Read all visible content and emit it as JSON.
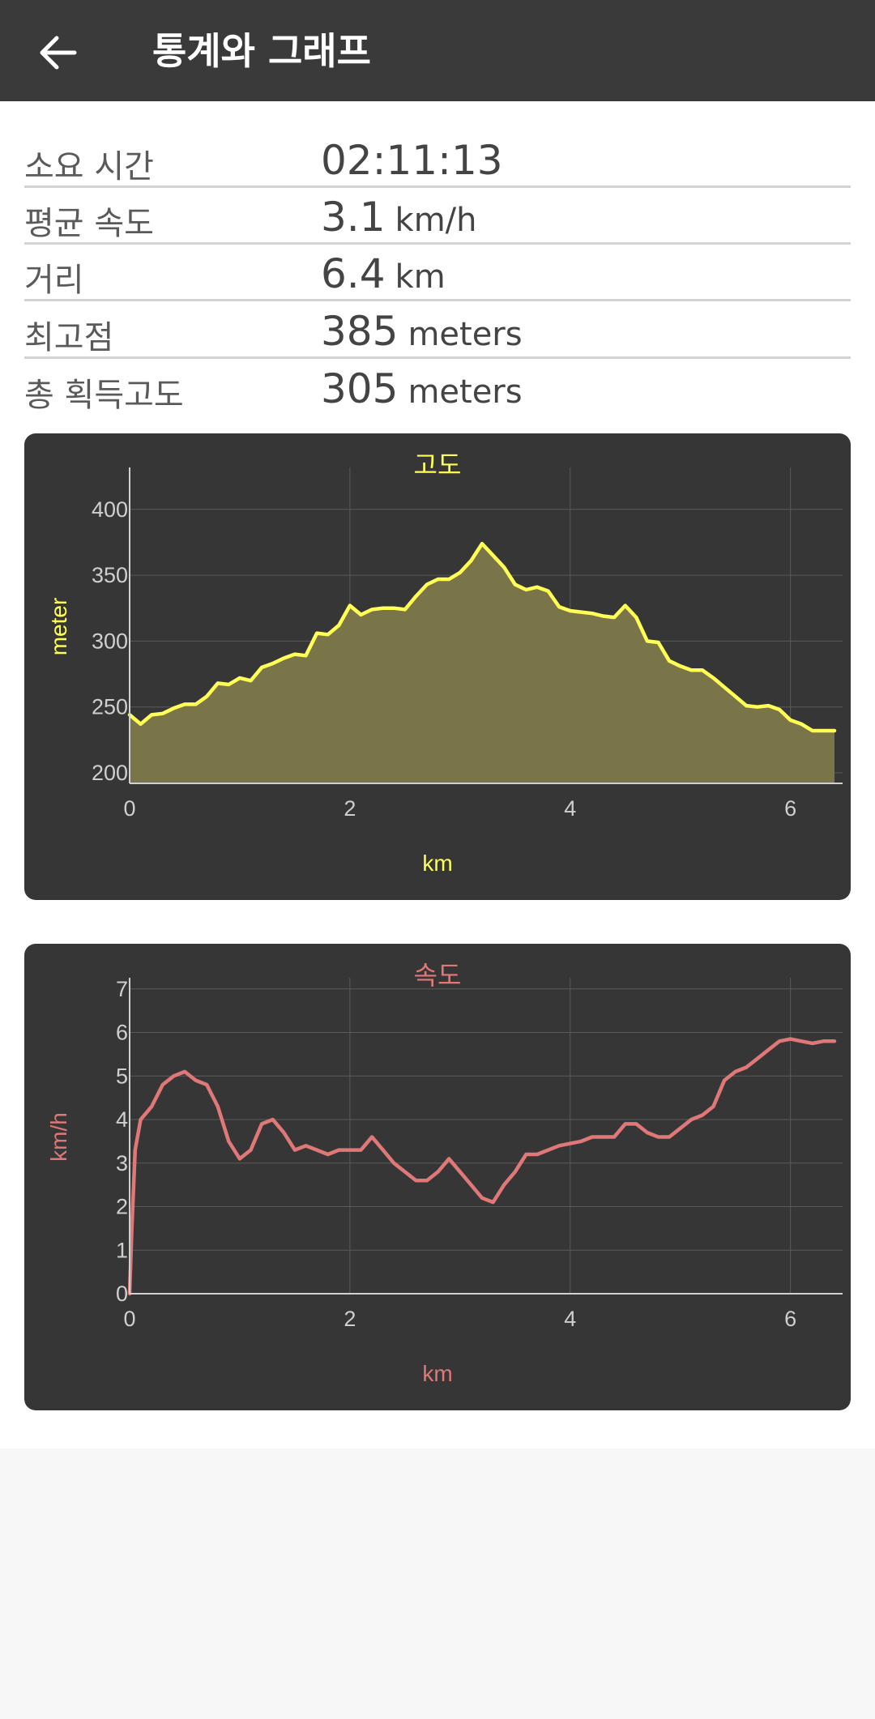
{
  "header": {
    "title": "통계와 그래프"
  },
  "stats": [
    {
      "label": "소요 시간",
      "value": "02:11:13",
      "unit": ""
    },
    {
      "label": "평균 속도",
      "value": "3.1",
      "unit": "km/h"
    },
    {
      "label": "거리",
      "value": "6.4",
      "unit": "km"
    },
    {
      "label": "최고점",
      "value": "385",
      "unit": "meters"
    },
    {
      "label": "총 획득고도",
      "value": "305",
      "unit": "meters"
    }
  ],
  "colors": {
    "appbar": "#3a3a3a",
    "card": "#363636",
    "elevation_line": "#ffff55",
    "elevation_fill": "#7a7548",
    "speed_line": "#e07878"
  },
  "chart_data": [
    {
      "type": "area",
      "title": "고도",
      "xlabel": "km",
      "ylabel": "meter",
      "xlim": [
        0,
        6.4
      ],
      "ylim": [
        192,
        430
      ],
      "xticks": [
        0,
        2,
        4,
        6
      ],
      "yticks": [
        200,
        250,
        300,
        350,
        400
      ],
      "grid": true,
      "x": [
        0,
        0.1,
        0.2,
        0.3,
        0.4,
        0.5,
        0.6,
        0.7,
        0.8,
        0.9,
        1.0,
        1.1,
        1.2,
        1.3,
        1.4,
        1.5,
        1.6,
        1.7,
        1.8,
        1.9,
        2.0,
        2.1,
        2.2,
        2.3,
        2.4,
        2.5,
        2.6,
        2.7,
        2.8,
        2.9,
        3.0,
        3.1,
        3.2,
        3.3,
        3.4,
        3.5,
        3.6,
        3.7,
        3.8,
        3.9,
        4.0,
        4.1,
        4.2,
        4.3,
        4.4,
        4.5,
        4.6,
        4.7,
        4.8,
        4.9,
        5.0,
        5.1,
        5.2,
        5.3,
        5.4,
        5.5,
        5.6,
        5.7,
        5.8,
        5.9,
        6.0,
        6.1,
        6.2,
        6.3,
        6.4
      ],
      "y": [
        244,
        237,
        244,
        245,
        249,
        252,
        252,
        258,
        268,
        267,
        272,
        270,
        280,
        283,
        287,
        290,
        289,
        306,
        305,
        312,
        327,
        320,
        324,
        325,
        325,
        324,
        334,
        343,
        347,
        347,
        352,
        361,
        374,
        365,
        356,
        343,
        339,
        341,
        338,
        326,
        323,
        322,
        321,
        319,
        318,
        327,
        318,
        300,
        299,
        285,
        281,
        278,
        278,
        272,
        265,
        258,
        251,
        250,
        251,
        248,
        240,
        237,
        232,
        232,
        232
      ]
    },
    {
      "type": "line",
      "title": "속도",
      "xlabel": "km",
      "ylabel": "km/h",
      "xlim": [
        0,
        6.4
      ],
      "ylim": [
        0,
        7.2
      ],
      "xticks": [
        0,
        2,
        4,
        6
      ],
      "yticks": [
        0,
        1,
        2,
        3,
        4,
        5,
        6,
        7
      ],
      "grid": true,
      "x": [
        0,
        0.02,
        0.05,
        0.1,
        0.2,
        0.3,
        0.4,
        0.5,
        0.6,
        0.7,
        0.8,
        0.9,
        1.0,
        1.1,
        1.2,
        1.3,
        1.4,
        1.5,
        1.6,
        1.7,
        1.8,
        1.9,
        2.0,
        2.1,
        2.2,
        2.3,
        2.4,
        2.5,
        2.6,
        2.7,
        2.8,
        2.9,
        3.0,
        3.1,
        3.2,
        3.3,
        3.4,
        3.5,
        3.6,
        3.7,
        3.8,
        3.9,
        4.0,
        4.1,
        4.2,
        4.3,
        4.4,
        4.5,
        4.6,
        4.7,
        4.8,
        4.9,
        5.0,
        5.1,
        5.2,
        5.3,
        5.4,
        5.5,
        5.6,
        5.7,
        5.8,
        5.9,
        6.0,
        6.1,
        6.2,
        6.3,
        6.4
      ],
      "y": [
        0,
        1.5,
        3.3,
        4.0,
        4.3,
        4.8,
        5.0,
        5.1,
        4.9,
        4.8,
        4.3,
        3.5,
        3.1,
        3.3,
        3.9,
        4.0,
        3.7,
        3.3,
        3.4,
        3.3,
        3.2,
        3.3,
        3.3,
        3.3,
        3.6,
        3.3,
        3.0,
        2.8,
        2.6,
        2.6,
        2.8,
        3.1,
        2.8,
        2.5,
        2.2,
        2.1,
        2.5,
        2.8,
        3.2,
        3.2,
        3.3,
        3.4,
        3.45,
        3.5,
        3.6,
        3.6,
        3.6,
        3.9,
        3.9,
        3.7,
        3.6,
        3.6,
        3.8,
        4.0,
        4.1,
        4.3,
        4.9,
        5.1,
        5.2,
        5.4,
        5.6,
        5.8,
        5.85,
        5.8,
        5.75,
        5.8,
        5.8
      ]
    }
  ]
}
